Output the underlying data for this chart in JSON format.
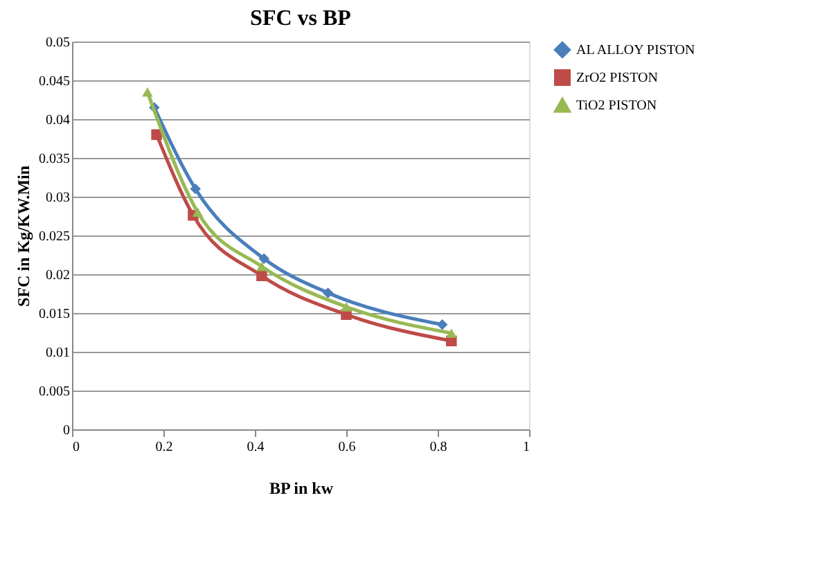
{
  "chart_data": {
    "type": "line",
    "title": "SFC vs  BP",
    "xlabel": "BP in kw",
    "ylabel": "SFC in Kg/KW.Min",
    "xlim": [
      0,
      1
    ],
    "xticks": [
      0,
      0.2,
      0.4,
      0.6,
      0.8,
      1
    ],
    "ylim": [
      0,
      0.05
    ],
    "yticks": [
      0,
      0.005,
      0.01,
      0.015,
      0.02,
      0.025,
      0.03,
      0.035,
      0.04,
      0.045,
      0.05
    ],
    "grid": "y",
    "legend": "right",
    "series": [
      {
        "name": "AL ALLOY PISTON",
        "color": "#4a7ebb",
        "marker": "diamond",
        "x": [
          0.18,
          0.27,
          0.42,
          0.56,
          0.81
        ],
        "values": [
          0.0415,
          0.031,
          0.022,
          0.0176,
          0.0135
        ]
      },
      {
        "name": "ZrO2 PISTON",
        "color": "#be4b48",
        "marker": "square",
        "x": [
          0.185,
          0.265,
          0.415,
          0.6,
          0.83
        ],
        "values": [
          0.038,
          0.0276,
          0.0198,
          0.0148,
          0.0114
        ]
      },
      {
        "name": "TiO2 PISTON",
        "color": "#98b954",
        "marker": "triangle",
        "x": [
          0.165,
          0.275,
          0.415,
          0.6,
          0.83
        ],
        "values": [
          0.0435,
          0.028,
          0.021,
          0.0158,
          0.0124
        ]
      }
    ]
  }
}
